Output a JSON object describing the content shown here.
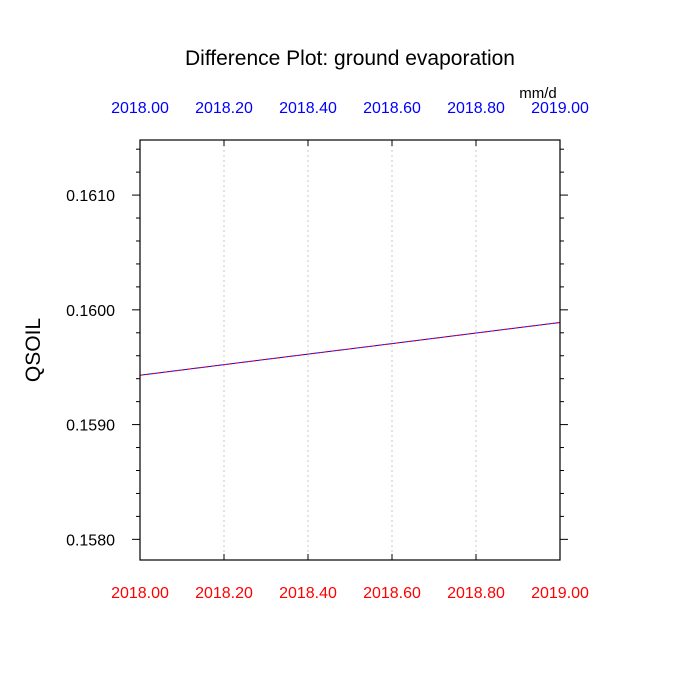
{
  "chart_data": {
    "type": "line",
    "title": "Difference Plot: ground evaporation",
    "units_label": "mm/d",
    "xlabel": "",
    "ylabel": "QSOIL",
    "xlim": [
      2018.0,
      2019.0
    ],
    "ylim": [
      0.15782,
      0.16148
    ],
    "x_ticks": [
      2018.0,
      2018.2,
      2018.4,
      2018.6,
      2018.8,
      2019.0
    ],
    "x_tick_labels": [
      "2018.00",
      "2018.20",
      "2018.40",
      "2018.60",
      "2018.80",
      "2019.00"
    ],
    "y_ticks": [
      0.158,
      0.159,
      0.16,
      0.161
    ],
    "y_tick_labels": [
      "0.1580",
      "0.1590",
      "0.1600",
      "0.1610"
    ],
    "y_minor_step": 0.0002,
    "x_grid": true,
    "y_grid": false,
    "colors": {
      "bottom_tick_labels": "#ff0000",
      "top_tick_labels": "#0000ff",
      "grid": "#c8c8c8",
      "series_a": "#0000ff",
      "series_b": "#ff0000"
    },
    "series": [
      {
        "x": [
          2018.0,
          2019.0
        ],
        "y": [
          0.15943,
          0.15989
        ],
        "color": "#0000ff"
      },
      {
        "x": [
          2018.0,
          2019.0
        ],
        "y": [
          0.15943,
          0.15989
        ],
        "color": "#ff0000",
        "dashed": true
      }
    ]
  }
}
